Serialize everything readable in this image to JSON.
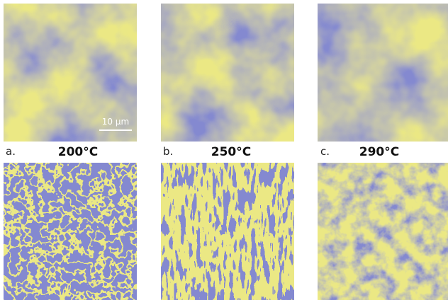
{
  "panels": [
    {
      "label": "a.",
      "temperature": "200°C"
    },
    {
      "label": "b.",
      "temperature": "250°C"
    },
    {
      "label": "c.",
      "temperature": "290°C"
    }
  ],
  "scale_bar": "10 µm"
}
